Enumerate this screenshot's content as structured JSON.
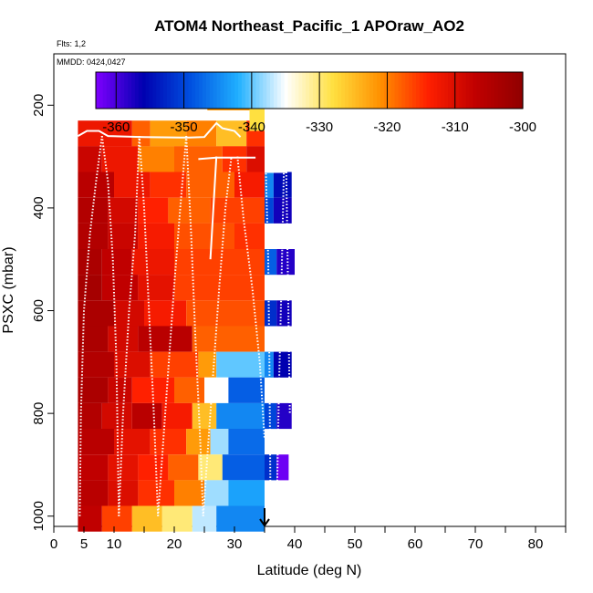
{
  "chart_data": {
    "type": "heatmap",
    "title": "ATOM4 Northeast_Pacific_1 APOraw_AO2",
    "flights_note": "Flts: 1,2",
    "dates_note": "MMDD: 0424,0427",
    "xlabel": "Latitude (deg N)",
    "ylabel": "PSXC (mbar)",
    "xlim": [
      0,
      85
    ],
    "ylim": [
      1020,
      100
    ],
    "x_ticks": [
      0,
      5,
      10,
      20,
      30,
      40,
      50,
      60,
      70,
      80
    ],
    "x_minor_ticks": [
      15,
      25,
      35,
      45,
      55,
      65,
      75,
      85
    ],
    "y_ticks": [
      200,
      400,
      600,
      800,
      1000
    ],
    "colorbar": {
      "min": -363,
      "max": -300,
      "ticks": [
        -360,
        -350,
        -340,
        -330,
        -320,
        -310,
        -300
      ],
      "colors": [
        "#7f00ff",
        "#0000b0",
        "#0050e0",
        "#20b0ff",
        "#ffffff",
        "#ffe040",
        "#ff9000",
        "#ff2000",
        "#c00000",
        "#900000"
      ]
    },
    "pressure_levels": [
      200,
      250,
      300,
      350,
      400,
      450,
      500,
      550,
      600,
      650,
      700,
      750,
      800,
      850,
      900,
      950,
      1000
    ],
    "bands": [
      {
        "x0": 4.0,
        "x1": 35.0,
        "p_top": 230,
        "segments": [
          [
            4,
            13,
            -312
          ],
          [
            13,
            16,
            -318
          ],
          [
            16,
            22,
            -322
          ],
          [
            22,
            27,
            -320
          ],
          [
            27,
            32,
            -325
          ],
          [
            32,
            35,
            -315
          ]
        ]
      },
      {
        "x0": 4.0,
        "x1": 35.0,
        "p_top": 280,
        "segments": [
          [
            4,
            8,
            -308
          ],
          [
            8,
            14,
            -312
          ],
          [
            14,
            20,
            -320
          ],
          [
            20,
            28,
            -318
          ],
          [
            28,
            32,
            -315
          ],
          [
            32,
            35,
            -310
          ]
        ]
      },
      {
        "x0": 4.0,
        "x1": 35.0,
        "p_top": 330,
        "segments": [
          [
            4,
            10,
            -306
          ],
          [
            10,
            16,
            -312
          ],
          [
            16,
            22,
            -315
          ],
          [
            22,
            30,
            -318
          ],
          [
            30,
            35,
            -313
          ]
        ]
      },
      {
        "x0": 4.0,
        "x1": 35.0,
        "p_top": 380,
        "segments": [
          [
            4,
            9,
            -305
          ],
          [
            9,
            14,
            -309
          ],
          [
            14,
            19,
            -314
          ],
          [
            19,
            26,
            -318
          ],
          [
            26,
            35,
            -316
          ]
        ]
      },
      {
        "x0": 4.0,
        "x1": 35.0,
        "p_top": 430,
        "segments": [
          [
            4,
            9,
            -305
          ],
          [
            9,
            14,
            -308
          ],
          [
            14,
            20,
            -313
          ],
          [
            20,
            30,
            -317
          ],
          [
            30,
            35,
            -315
          ]
        ]
      },
      {
        "x0": 4.0,
        "x1": 35.0,
        "p_top": 480,
        "segments": [
          [
            4,
            8,
            -304
          ],
          [
            8,
            13,
            -307
          ],
          [
            13,
            20,
            -312
          ],
          [
            20,
            35,
            -316
          ]
        ]
      },
      {
        "x0": 4.0,
        "x1": 35.0,
        "p_top": 530,
        "segments": [
          [
            4,
            8,
            -303
          ],
          [
            8,
            14,
            -307
          ],
          [
            14,
            20,
            -311
          ],
          [
            20,
            35,
            -316
          ]
        ]
      },
      {
        "x0": 4.0,
        "x1": 35.0,
        "p_top": 580,
        "segments": [
          [
            4,
            10,
            -304
          ],
          [
            10,
            15,
            -309
          ],
          [
            15,
            22,
            -313
          ],
          [
            22,
            35,
            -317
          ]
        ]
      },
      {
        "x0": 4.0,
        "x1": 35.0,
        "p_top": 630,
        "segments": [
          [
            4,
            9,
            -304
          ],
          [
            9,
            14,
            -309
          ],
          [
            14,
            23,
            -306
          ],
          [
            23,
            35,
            -318
          ]
        ]
      },
      {
        "x0": 4.0,
        "x1": 35.0,
        "p_top": 680,
        "segments": [
          [
            4,
            10,
            -305
          ],
          [
            10,
            16,
            -310
          ],
          [
            16,
            24,
            -316
          ],
          [
            24,
            27,
            -322
          ],
          [
            27,
            35,
            -340
          ]
        ]
      },
      {
        "x0": 4.0,
        "x1": 35.0,
        "p_top": 730,
        "segments": [
          [
            4,
            9,
            -304
          ],
          [
            9,
            13,
            -308
          ],
          [
            13,
            20,
            -314
          ],
          [
            20,
            25,
            -318
          ],
          [
            25,
            29,
            -335
          ],
          [
            29,
            35,
            -348
          ]
        ]
      },
      {
        "x0": 4.0,
        "x1": 35.0,
        "p_top": 780,
        "segments": [
          [
            4,
            8,
            -305
          ],
          [
            8,
            13,
            -309
          ],
          [
            13,
            18,
            -306
          ],
          [
            18,
            23,
            -313
          ],
          [
            23,
            27,
            -325
          ],
          [
            27,
            35,
            -345
          ]
        ]
      },
      {
        "x0": 4.0,
        "x1": 35.0,
        "p_top": 830,
        "segments": [
          [
            4,
            10,
            -306
          ],
          [
            10,
            16,
            -311
          ],
          [
            16,
            22,
            -315
          ],
          [
            22,
            26,
            -322
          ],
          [
            26,
            29,
            -338
          ],
          [
            29,
            35,
            -347
          ]
        ]
      },
      {
        "x0": 4.0,
        "x1": 35.0,
        "p_top": 880,
        "segments": [
          [
            4,
            9,
            -307
          ],
          [
            9,
            14,
            -311
          ],
          [
            14,
            19,
            -314
          ],
          [
            19,
            24,
            -318
          ],
          [
            24,
            28,
            -330
          ],
          [
            28,
            35,
            -348
          ]
        ]
      },
      {
        "x0": 4.0,
        "x1": 35.0,
        "p_top": 930,
        "segments": [
          [
            4,
            9,
            -306
          ],
          [
            9,
            14,
            -310
          ],
          [
            14,
            20,
            -315
          ],
          [
            20,
            25,
            -320
          ],
          [
            25,
            29,
            -338
          ],
          [
            29,
            35,
            -343
          ]
        ]
      },
      {
        "x0": 4.0,
        "x1": 35.0,
        "p_top": 980,
        "segments": [
          [
            4,
            8,
            -307
          ],
          [
            8,
            13,
            -316
          ],
          [
            13,
            18,
            -325
          ],
          [
            18,
            23,
            -330
          ],
          [
            23,
            27,
            -337
          ],
          [
            27,
            35,
            -345
          ]
        ]
      },
      {
        "x0": 25.5,
        "x1": 32.5,
        "p_top": 160,
        "segments": [
          [
            25.5,
            32.5,
            -322
          ]
        ]
      },
      {
        "x0": 32.5,
        "x1": 35.0,
        "p_top": 200,
        "segments": [
          [
            32.5,
            35,
            -328
          ]
        ]
      },
      {
        "x0": 35.0,
        "x1": 39.5,
        "p_top": 330,
        "segments": [
          [
            35,
            36.5,
            -345
          ],
          [
            36.5,
            39.5,
            -355
          ]
        ]
      },
      {
        "x0": 35.0,
        "x1": 39.5,
        "p_top": 380,
        "segments": [
          [
            35,
            36.5,
            -350
          ],
          [
            36.5,
            39.5,
            -357
          ]
        ]
      },
      {
        "x0": 35.0,
        "x1": 39.5,
        "p_top": 480,
        "segments": [
          [
            35,
            37,
            -348
          ],
          [
            37,
            40,
            -358
          ]
        ]
      },
      {
        "x0": 35.0,
        "x1": 39.5,
        "p_top": 580,
        "segments": [
          [
            35,
            37,
            -352
          ],
          [
            37,
            39.5,
            -357
          ]
        ]
      },
      {
        "x0": 35.0,
        "x1": 39.5,
        "p_top": 680,
        "segments": [
          [
            35,
            36.5,
            -345
          ],
          [
            36.5,
            39.5,
            -356
          ]
        ]
      },
      {
        "x0": 35.0,
        "x1": 39.5,
        "p_top": 780,
        "segments": [
          [
            35,
            37,
            -350
          ],
          [
            37,
            39.5,
            -358
          ]
        ]
      },
      {
        "x0": 35.0,
        "x1": 39.0,
        "p_top": 880,
        "segments": [
          [
            35,
            37,
            -352
          ],
          [
            37,
            39,
            -362
          ]
        ]
      }
    ],
    "profiles_dotted": [
      [
        [
          4.3,
          1000
        ],
        [
          4.5,
          800
        ],
        [
          5,
          600
        ],
        [
          6,
          450
        ],
        [
          7,
          350
        ],
        [
          8,
          260
        ]
      ],
      [
        [
          8,
          260
        ],
        [
          9,
          350
        ],
        [
          9.8,
          500
        ],
        [
          10.4,
          700
        ],
        [
          10.8,
          1000
        ]
      ],
      [
        [
          10.8,
          1000
        ],
        [
          11.5,
          800
        ],
        [
          12.5,
          600
        ],
        [
          13.5,
          450
        ],
        [
          14.2,
          260
        ]
      ],
      [
        [
          14.2,
          260
        ],
        [
          15,
          400
        ],
        [
          15.8,
          600
        ],
        [
          16.6,
          800
        ],
        [
          17.3,
          1000
        ]
      ],
      [
        [
          17.3,
          1000
        ],
        [
          18.5,
          800
        ],
        [
          20,
          550
        ],
        [
          21,
          400
        ],
        [
          22,
          260
        ]
      ],
      [
        [
          22,
          260
        ],
        [
          22.8,
          450
        ],
        [
          23.5,
          650
        ],
        [
          24.3,
          850
        ],
        [
          24.8,
          1000
        ]
      ],
      [
        [
          24.8,
          1000
        ],
        [
          26,
          800
        ],
        [
          27.5,
          550
        ],
        [
          28.5,
          400
        ],
        [
          29.5,
          300
        ]
      ],
      [
        [
          30.5,
          300
        ],
        [
          31.5,
          420
        ],
        [
          33,
          560
        ],
        [
          34.2,
          700
        ],
        [
          35,
          850
        ]
      ],
      [
        [
          35.2,
          320
        ],
        [
          35.6,
          500
        ],
        [
          35.8,
          700
        ],
        [
          36,
          1000
        ]
      ],
      [
        [
          37,
          1000
        ],
        [
          37.4,
          750
        ],
        [
          37.8,
          550
        ],
        [
          38.2,
          330
        ]
      ],
      [
        [
          38.6,
          330
        ],
        [
          38.9,
          550
        ],
        [
          39.2,
          800
        ]
      ]
    ],
    "profiles_solid": [
      [
        [
          4,
          260
        ],
        [
          5.5,
          250
        ],
        [
          7.5,
          250
        ],
        [
          9,
          260
        ],
        [
          15,
          262
        ],
        [
          21,
          263
        ],
        [
          22.5,
          263
        ],
        [
          25,
          262
        ],
        [
          27,
          235
        ],
        [
          28,
          245
        ],
        [
          30,
          250
        ],
        [
          31,
          262
        ]
      ],
      [
        [
          24,
          305
        ],
        [
          27,
          302
        ],
        [
          30,
          302
        ],
        [
          33.5,
          302
        ]
      ],
      [
        [
          27,
          300
        ],
        [
          26.5,
          400
        ],
        [
          26,
          500
        ]
      ],
      [
        [
          35,
          330
        ],
        [
          37,
          330
        ],
        [
          38.5,
          330
        ]
      ]
    ],
    "arrow_marker_lat": 35
  }
}
